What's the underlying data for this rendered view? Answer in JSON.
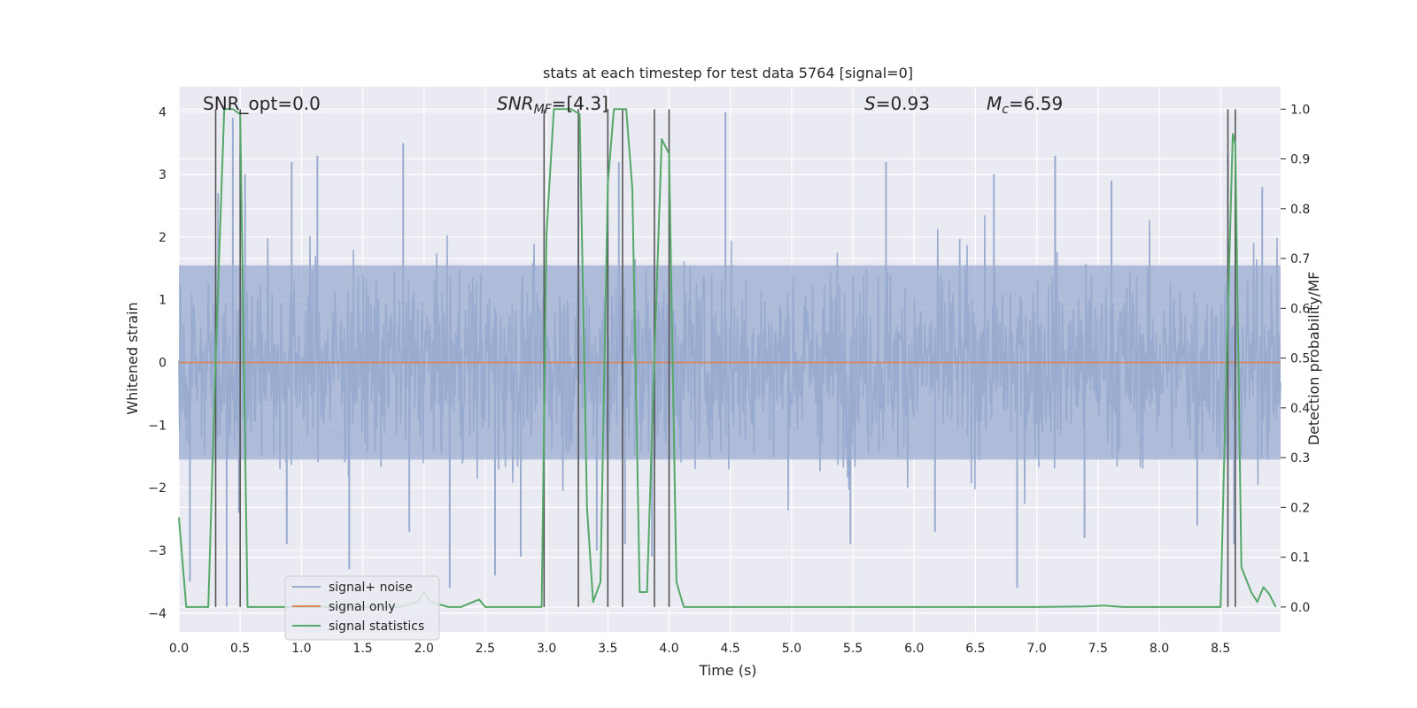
{
  "chart_data": {
    "type": "line",
    "title": "stats at each timestep for test data 5764 [signal=0]",
    "xlabel": "Time (s)",
    "ylabel": "Whitened strain",
    "y2label": "Detection probability/MF",
    "xlim": [
      0.0,
      8.99
    ],
    "ylim": [
      -4.3,
      4.4
    ],
    "y2lim": [
      -0.05,
      1.045
    ],
    "xticks": [
      "0.0",
      "0.5",
      "1.0",
      "1.5",
      "2.0",
      "2.5",
      "3.0",
      "3.5",
      "4.0",
      "4.5",
      "5.0",
      "5.5",
      "6.0",
      "6.5",
      "7.0",
      "7.5",
      "8.0",
      "8.5"
    ],
    "yticks": [
      "4",
      "3",
      "2",
      "1",
      "0",
      "−1",
      "−2",
      "−3",
      "−4"
    ],
    "y2ticks": [
      "1.0",
      "0.9",
      "0.8",
      "0.7",
      "0.6",
      "0.5",
      "0.4",
      "0.3",
      "0.2",
      "0.1",
      "0.0"
    ],
    "annotations": {
      "snr_opt": "SNR_opt=0.0",
      "snr_mf_sym": "SNR",
      "snr_mf_sub": "MF",
      "snr_mf_val": "=[4.3]",
      "s_sym": "S",
      "s_val": "=0.93",
      "mc_sym": "M",
      "mc_sub": "c",
      "mc_val": "=6.59"
    },
    "legend": {
      "position": "lower-left",
      "entries": [
        "signal+ noise",
        "signal only",
        "signal statistics"
      ]
    },
    "colors": {
      "noise": "#9aabd0",
      "signal": "#dd8452",
      "stats": "#55a868",
      "vline": "#555555",
      "background": "#eaeaf2",
      "grid": "#ffffff"
    },
    "noise_series": {
      "name": "signal+ noise",
      "note": "dense whitened noise, typical amplitude about ±2, extremes near +4 and −3.9",
      "spikes": [
        {
          "t": 0.09,
          "v": -3.5
        },
        {
          "t": 0.32,
          "v": 2.7
        },
        {
          "t": 0.39,
          "v": -3.9
        },
        {
          "t": 0.44,
          "v": 3.9
        },
        {
          "t": 0.49,
          "v": -2.4
        },
        {
          "t": 0.54,
          "v": 3.0
        },
        {
          "t": 0.88,
          "v": -2.9
        },
        {
          "t": 0.92,
          "v": 3.2
        },
        {
          "t": 1.13,
          "v": 3.3
        },
        {
          "t": 1.39,
          "v": -3.3
        },
        {
          "t": 1.83,
          "v": 3.5
        },
        {
          "t": 1.88,
          "v": -2.7
        },
        {
          "t": 2.21,
          "v": -3.6
        },
        {
          "t": 2.58,
          "v": -3.4
        },
        {
          "t": 2.79,
          "v": -3.1
        },
        {
          "t": 3.26,
          "v": 3.0
        },
        {
          "t": 3.41,
          "v": -3.0
        },
        {
          "t": 3.59,
          "v": 3.2
        },
        {
          "t": 3.64,
          "v": -2.9
        },
        {
          "t": 3.86,
          "v": -3.1
        },
        {
          "t": 4.46,
          "v": 4.0
        },
        {
          "t": 5.48,
          "v": -2.9
        },
        {
          "t": 5.77,
          "v": 3.2
        },
        {
          "t": 6.17,
          "v": -2.7
        },
        {
          "t": 6.65,
          "v": 3.0
        },
        {
          "t": 6.84,
          "v": -3.6
        },
        {
          "t": 7.15,
          "v": 3.3
        },
        {
          "t": 7.39,
          "v": -2.8
        },
        {
          "t": 7.61,
          "v": 2.9
        },
        {
          "t": 8.31,
          "v": -2.6
        },
        {
          "t": 8.56,
          "v": 3.3
        },
        {
          "t": 8.61,
          "v": -2.9
        },
        {
          "t": 8.84,
          "v": 2.8
        }
      ]
    },
    "signal_only": {
      "name": "signal only",
      "x": [
        0.0,
        8.99
      ],
      "y": [
        0.0,
        0.0
      ]
    },
    "stats_series": {
      "name": "signal statistics",
      "x": [
        0.0,
        0.06,
        0.12,
        0.18,
        0.24,
        0.3,
        0.37,
        0.44,
        0.5,
        0.56,
        0.62,
        0.7,
        0.8,
        0.9,
        1.0,
        1.2,
        1.4,
        1.6,
        1.8,
        1.95,
        2.0,
        2.05,
        2.2,
        2.3,
        2.4,
        2.45,
        2.5,
        2.6,
        2.8,
        2.96,
        3.0,
        3.06,
        3.12,
        3.2,
        3.27,
        3.33,
        3.38,
        3.44,
        3.5,
        3.55,
        3.6,
        3.65,
        3.7,
        3.76,
        3.82,
        3.88,
        3.94,
        4.0,
        4.06,
        4.12,
        4.3,
        5.0,
        6.0,
        7.0,
        7.4,
        7.55,
        7.7,
        8.0,
        8.5,
        8.55,
        8.6,
        8.62,
        8.67,
        8.75,
        8.8,
        8.85,
        8.9,
        8.95
      ],
      "y": [
        0.18,
        0.0,
        0.0,
        0.0,
        0.0,
        0.5,
        1.0,
        1.0,
        0.99,
        0.0,
        0.0,
        0.0,
        0.0,
        0.0,
        0.0,
        0.0,
        0.0,
        0.0,
        0.0,
        0.01,
        0.03,
        0.01,
        0.0,
        0.0,
        0.01,
        0.015,
        0.0,
        0.0,
        0.0,
        0.0,
        0.75,
        1.0,
        1.0,
        1.0,
        0.99,
        0.2,
        0.01,
        0.05,
        0.85,
        1.0,
        1.0,
        1.0,
        0.84,
        0.03,
        0.03,
        0.5,
        0.94,
        0.91,
        0.05,
        0.0,
        0.0,
        0.0,
        0.0,
        0.0,
        0.001,
        0.003,
        0.0,
        0.0,
        0.0,
        0.5,
        0.95,
        0.93,
        0.08,
        0.03,
        0.01,
        0.04,
        0.025,
        0.0
      ]
    },
    "vlines": [
      0.3,
      0.5,
      2.98,
      3.26,
      3.5,
      3.62,
      3.88,
      4.0,
      8.56,
      8.62
    ]
  }
}
